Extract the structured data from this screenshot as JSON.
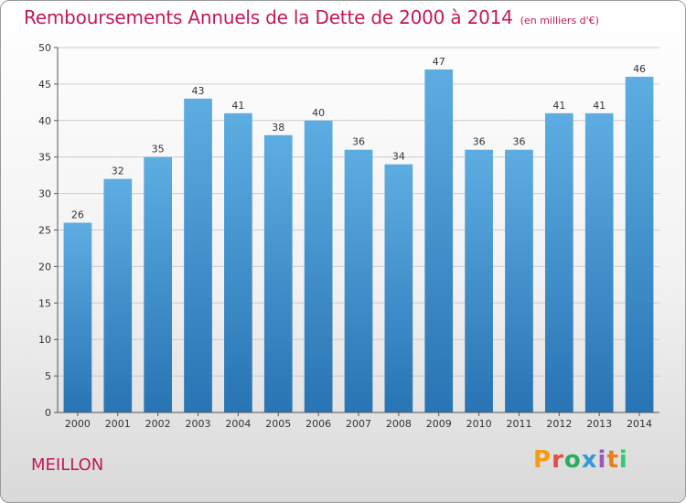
{
  "header": {
    "title": "Remboursements Annuels de la Dette de 2000 à 2014",
    "unit": "(en milliers d'€)"
  },
  "footer": {
    "commune": "MEILLON",
    "logo": "Proxiti",
    "logo_colors": [
      "#f39c12",
      "#e74c3c",
      "#27ae60",
      "#3498db",
      "#9b59b6",
      "#e67e22",
      "#2ecc71"
    ]
  },
  "colors": {
    "bar_light": "#5dade2",
    "bar_dark": "#2874b4",
    "grid": "#cccccc",
    "axis": "#555555"
  },
  "chart_data": {
    "type": "bar",
    "title": "Remboursements Annuels de la Dette de 2000 à 2014",
    "subtitle": "(en milliers d'€)",
    "xlabel": "",
    "ylabel": "",
    "categories": [
      "2000",
      "2001",
      "2002",
      "2003",
      "2004",
      "2005",
      "2006",
      "2007",
      "2008",
      "2009",
      "2010",
      "2011",
      "2012",
      "2013",
      "2014"
    ],
    "values": [
      26,
      32,
      35,
      43,
      41,
      38,
      40,
      36,
      34,
      47,
      36,
      36,
      41,
      41,
      46
    ],
    "ylim": [
      0,
      50
    ],
    "yticks": [
      0,
      5,
      10,
      15,
      20,
      25,
      30,
      35,
      40,
      45,
      50
    ],
    "grid": true,
    "data_labels": true
  }
}
